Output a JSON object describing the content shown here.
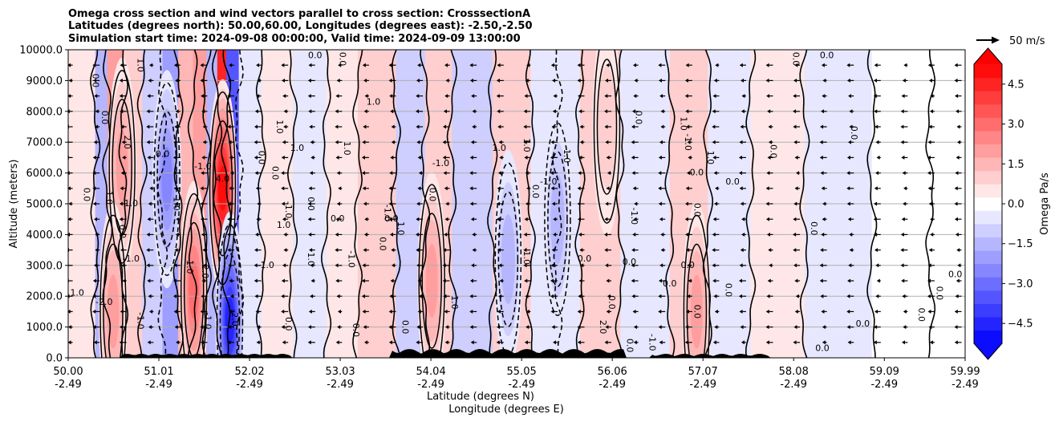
{
  "chart_data": {
    "type": "heatmap",
    "title_lines": [
      "Omega cross section and wind vectors parallel to cross section: CrosssectionA",
      "Latitudes (degrees north): 50.00,60.00, Longitudes (degrees east): -2.50,-2.50",
      "Simulation start time: 2024-09-08 00:00:00, Valid time: 2024-09-09 13:00:00"
    ],
    "ylabel": "Altitude (meters)",
    "xlabel": "Latitude (degrees N)",
    "xlabel2": "Longitude (degrees E)",
    "ylim": [
      0,
      10000
    ],
    "yticks": [
      "0.0",
      "1000.0",
      "2000.0",
      "3000.0",
      "4000.0",
      "5000.0",
      "6000.0",
      "7000.0",
      "8000.0",
      "9000.0",
      "10000.0"
    ],
    "xlim": [
      50.0,
      59.99
    ],
    "xticks": [
      {
        "lat": "50.00",
        "lon": "-2.49"
      },
      {
        "lat": "51.01",
        "lon": "-2.49"
      },
      {
        "lat": "52.02",
        "lon": "-2.49"
      },
      {
        "lat": "53.03",
        "lon": "-2.49"
      },
      {
        "lat": "54.04",
        "lon": "-2.49"
      },
      {
        "lat": "55.05",
        "lon": "-2.49"
      },
      {
        "lat": "56.06",
        "lon": "-2.49"
      },
      {
        "lat": "57.07",
        "lon": "-2.49"
      },
      {
        "lat": "58.08",
        "lon": "-2.49"
      },
      {
        "lat": "59.09",
        "lon": "-2.49"
      },
      {
        "lat": "59.99",
        "lon": "-2.49"
      }
    ],
    "grid": "horizontal",
    "colorbar": {
      "label": "Omega Pa/s",
      "range": [
        -5.25,
        5.25
      ],
      "step": 0.5,
      "ticks": [
        "4.5",
        "3.0",
        "1.5",
        "0.0",
        "−1.5",
        "−3.0",
        "−4.5"
      ],
      "colormap": "bwr",
      "extend": "both"
    },
    "quiver_key": {
      "label": "50 m/s",
      "value": 50
    },
    "wind_vectors": "mostly southward (pointing left) along cross section",
    "omega_bands": [
      {
        "lat": 50.25,
        "omega": 0.4
      },
      {
        "lat": 50.35,
        "omega": -1.5
      },
      {
        "lat": 50.52,
        "omega": 2.2
      },
      {
        "lat": 50.7,
        "omega": 1.0
      },
      {
        "lat": 50.95,
        "omega": -1.2
      },
      {
        "lat": 51.15,
        "omega": -1.8
      },
      {
        "lat": 51.3,
        "omega": 1.4
      },
      {
        "lat": 51.48,
        "omega": 2.0
      },
      {
        "lat": 51.6,
        "omega": -1.4
      },
      {
        "lat": 51.72,
        "omega": 4.5
      },
      {
        "lat": 51.8,
        "omega": -3.5
      },
      {
        "lat": 52.0,
        "omega": -0.6
      },
      {
        "lat": 52.3,
        "omega": 0.7
      },
      {
        "lat": 52.7,
        "omega": -0.4
      },
      {
        "lat": 53.05,
        "omega": 0.5
      },
      {
        "lat": 53.4,
        "omega": 0.9
      },
      {
        "lat": 53.9,
        "omega": -0.8
      },
      {
        "lat": 54.05,
        "omega": 1.2
      },
      {
        "lat": 54.5,
        "omega": -0.9
      },
      {
        "lat": 54.95,
        "omega": 0.8
      },
      {
        "lat": 55.35,
        "omega": -0.7
      },
      {
        "lat": 55.55,
        "omega": -0.6
      },
      {
        "lat": 55.85,
        "omega": 1.0
      },
      {
        "lat": 56.45,
        "omega": -0.4
      },
      {
        "lat": 56.95,
        "omega": 0.9
      },
      {
        "lat": 57.3,
        "omega": -0.3
      },
      {
        "lat": 57.9,
        "omega": 0.3
      },
      {
        "lat": 58.5,
        "omega": -0.4
      },
      {
        "lat": 59.4,
        "omega": 0.1
      },
      {
        "lat": 59.8,
        "omega": 0.15
      }
    ],
    "omega_maxima": [
      {
        "lat": 51.72,
        "alt": 5500,
        "omega": 5.0
      },
      {
        "lat": 51.4,
        "alt": 2200,
        "omega": 2.8
      },
      {
        "lat": 50.6,
        "alt": 6200,
        "omega": 2.2
      },
      {
        "lat": 50.5,
        "alt": 1500,
        "omega": 2.2
      },
      {
        "lat": 51.8,
        "alt": 1200,
        "omega": -4.5
      },
      {
        "lat": 51.1,
        "alt": 5800,
        "omega": -2.5
      },
      {
        "lat": 54.05,
        "alt": 2500,
        "omega": 1.8
      },
      {
        "lat": 54.9,
        "alt": 3200,
        "omega": -1.6
      },
      {
        "lat": 57.0,
        "alt": 1500,
        "omega": 2.0
      },
      {
        "lat": 56.0,
        "alt": 7500,
        "omega": 1.2
      },
      {
        "lat": 55.45,
        "alt": 4500,
        "omega": -1.3
      }
    ],
    "contour_labels": [
      {
        "text": "1.0",
        "lat": 50.1,
        "alt": 2100
      },
      {
        "text": "0.0",
        "lat": 50.3,
        "alt": 9000
      },
      {
        "text": "0.0",
        "lat": 50.4,
        "alt": 7800
      },
      {
        "text": "-2.0",
        "lat": 50.4,
        "alt": 1800
      },
      {
        "text": "0.0",
        "lat": 50.2,
        "alt": 5300
      },
      {
        "text": "1.0",
        "lat": 50.45,
        "alt": 5200
      },
      {
        "text": "-1.0",
        "lat": 50.7,
        "alt": 3200
      },
      {
        "text": "0.0",
        "lat": 50.6,
        "alt": 4100
      },
      {
        "text": "2.0",
        "lat": 50.65,
        "alt": 7000
      },
      {
        "text": "1.0",
        "lat": 50.7,
        "alt": 5000
      },
      {
        "text": "1.0",
        "lat": 50.8,
        "alt": 9500
      },
      {
        "text": "-1.0",
        "lat": 50.8,
        "alt": 1200
      },
      {
        "text": "0.0",
        "lat": 51.05,
        "alt": 6600
      },
      {
        "text": "1.0",
        "lat": 51.2,
        "alt": 5000
      },
      {
        "text": "-1.0",
        "lat": 51.35,
        "alt": 3000
      },
      {
        "text": "-1.0",
        "lat": 51.5,
        "alt": 6200
      },
      {
        "text": "2.0",
        "lat": 51.52,
        "alt": 2800
      },
      {
        "text": "-1.0",
        "lat": 51.55,
        "alt": 1200
      },
      {
        "text": "4.0",
        "lat": 51.72,
        "alt": 5800
      },
      {
        "text": "-2.0",
        "lat": 51.85,
        "alt": 1300
      },
      {
        "text": "0.0",
        "lat": 52.15,
        "alt": 6500
      },
      {
        "text": "-1.0",
        "lat": 52.2,
        "alt": 3000
      },
      {
        "text": "0.0",
        "lat": 52.3,
        "alt": 6000
      },
      {
        "text": "1.0",
        "lat": 52.35,
        "alt": 7500
      },
      {
        "text": "1.0",
        "lat": 52.4,
        "alt": 4300
      },
      {
        "text": "-1.0",
        "lat": 52.45,
        "alt": 4800
      },
      {
        "text": "0.0",
        "lat": 52.45,
        "alt": 1100
      },
      {
        "text": "1.0",
        "lat": 52.55,
        "alt": 6800
      },
      {
        "text": "0.0",
        "lat": 52.7,
        "alt": 5000
      },
      {
        "text": "1.0",
        "lat": 52.7,
        "alt": 3200
      },
      {
        "text": "0.0",
        "lat": 52.75,
        "alt": 9800
      },
      {
        "text": "0.0",
        "lat": 53.05,
        "alt": 9700
      },
      {
        "text": "1.0",
        "lat": 53.1,
        "alt": 6800
      },
      {
        "text": "0.0",
        "lat": 53.0,
        "alt": 4500
      },
      {
        "text": "-1.0",
        "lat": 53.15,
        "alt": 3200
      },
      {
        "text": "0.0",
        "lat": 53.2,
        "alt": 900
      },
      {
        "text": "1.0",
        "lat": 53.4,
        "alt": 8300
      },
      {
        "text": "0.0",
        "lat": 53.5,
        "alt": 3700
      },
      {
        "text": "-1.0",
        "lat": 53.55,
        "alt": 4700
      },
      {
        "text": "0.0",
        "lat": 53.6,
        "alt": 4500
      },
      {
        "text": "0.0",
        "lat": 53.75,
        "alt": 1000
      },
      {
        "text": "1.0",
        "lat": 53.7,
        "alt": 4200
      },
      {
        "text": "-1.0",
        "lat": 54.15,
        "alt": 6300
      },
      {
        "text": "1.0",
        "lat": 54.3,
        "alt": 1800
      },
      {
        "text": "0.0",
        "lat": 54.05,
        "alt": 5300
      },
      {
        "text": "1.0",
        "lat": 54.8,
        "alt": 6800
      },
      {
        "text": "-1.0",
        "lat": 55.1,
        "alt": 3300
      },
      {
        "text": "0.0",
        "lat": 55.2,
        "alt": 5400
      },
      {
        "text": "-1.0",
        "lat": 55.35,
        "alt": 5700
      },
      {
        "text": "1.0",
        "lat": 55.1,
        "alt": 6900
      },
      {
        "text": "-1.0",
        "lat": 55.55,
        "alt": 6600
      },
      {
        "text": "0.0",
        "lat": 55.75,
        "alt": 3200
      },
      {
        "text": "0.0",
        "lat": 56.05,
        "alt": 1800
      },
      {
        "text": "2.0",
        "lat": 55.95,
        "alt": 1000
      },
      {
        "text": "0.0",
        "lat": 56.25,
        "alt": 3100
      },
      {
        "text": "-1.0",
        "lat": 56.3,
        "alt": 4600
      },
      {
        "text": "0.0",
        "lat": 56.35,
        "alt": 7800
      },
      {
        "text": "0.0",
        "lat": 56.7,
        "alt": 2400
      },
      {
        "text": "1.0",
        "lat": 56.85,
        "alt": 7600
      },
      {
        "text": "-1.0",
        "lat": 56.9,
        "alt": 7000
      },
      {
        "text": "0.0",
        "lat": 57.0,
        "alt": 6000
      },
      {
        "text": "1.0",
        "lat": 57.15,
        "alt": 6500
      },
      {
        "text": "0.0",
        "lat": 57.0,
        "alt": 4800
      },
      {
        "text": "0.0",
        "lat": 56.9,
        "alt": 3000
      },
      {
        "text": "0.0",
        "lat": 57.0,
        "alt": 1500
      },
      {
        "text": "0.0",
        "lat": 57.35,
        "alt": 2200
      },
      {
        "text": "0.0",
        "lat": 57.4,
        "alt": 5700
      },
      {
        "text": "0.0",
        "lat": 57.85,
        "alt": 6700
      },
      {
        "text": "0.0",
        "lat": 58.1,
        "alt": 9700
      },
      {
        "text": "0.0",
        "lat": 58.45,
        "alt": 9800
      },
      {
        "text": "0.0",
        "lat": 58.3,
        "alt": 4200
      },
      {
        "text": "0.0",
        "lat": 58.75,
        "alt": 7300
      },
      {
        "text": "0.0",
        "lat": 58.85,
        "alt": 1100
      },
      {
        "text": "0.0",
        "lat": 59.5,
        "alt": 1400
      },
      {
        "text": "0.0",
        "lat": 59.7,
        "alt": 2100
      },
      {
        "text": "0.0",
        "lat": 59.88,
        "alt": 2700
      },
      {
        "text": "0.0",
        "lat": 56.25,
        "alt": 400
      },
      {
        "text": "-1.0",
        "lat": 56.5,
        "alt": 500
      },
      {
        "text": "0.0",
        "lat": 58.4,
        "alt": 300
      }
    ]
  }
}
